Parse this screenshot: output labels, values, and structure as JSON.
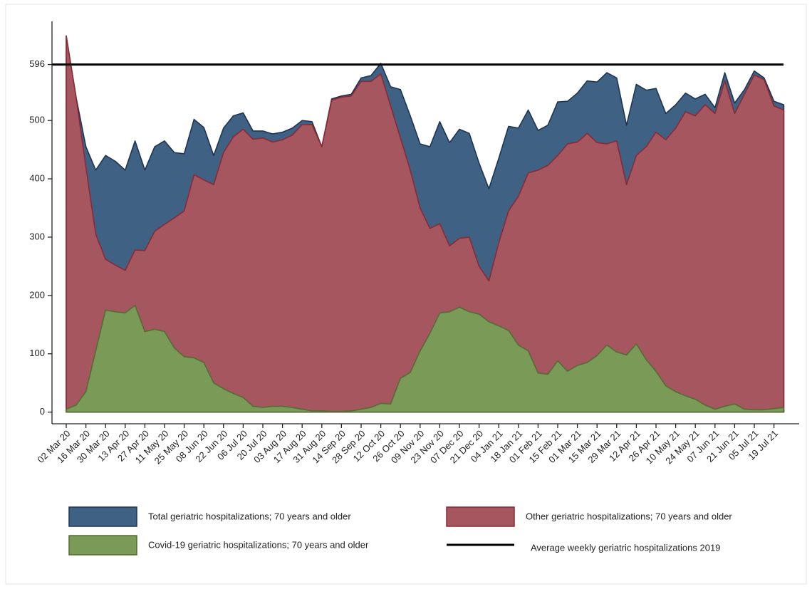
{
  "chart_data": {
    "type": "area",
    "categories": [
      "02 Mar 20",
      null,
      "16 Mar 20",
      null,
      "30 Mar 20",
      null,
      "13 Apr 20",
      null,
      "27 Apr 20",
      null,
      "11 May 20",
      null,
      "25 May 20",
      null,
      "08 Jun 20",
      null,
      "22 Jun 20",
      null,
      "06 Jul 20",
      null,
      "20 Jul 20",
      null,
      "03 Aug 20",
      null,
      "17 Aug 20",
      null,
      "31 Aug 20",
      null,
      "14 Sep 20",
      null,
      "28 Sep 20",
      null,
      "12 Oct 20",
      null,
      "26 Oct 20",
      null,
      "09 Nov 20",
      null,
      "23 Nov 20",
      null,
      "07 Dec 20",
      null,
      "21 Dec 20",
      null,
      "04 Jan 21",
      null,
      "18 Jan 21",
      null,
      "01 Feb 21",
      null,
      "15 Feb 21",
      null,
      "01 Mar 21",
      null,
      "15 Mar 21",
      null,
      "29 Mar 21",
      null,
      "12 Apr 21",
      null,
      "26 Apr 21",
      null,
      "10 May 21",
      null,
      "24 May 21",
      null,
      "07 Jun 21",
      null,
      "21 Jun 21",
      null,
      "05 Jul 21",
      null,
      "19 Jul 21",
      null
    ],
    "series": [
      {
        "name": "Total geriatric hospitalizations; 70 years and older",
        "color": "#3f6183",
        "stroke": "#1e3552",
        "values": [
          645,
          540,
          455,
          415,
          440,
          430,
          415,
          465,
          415,
          455,
          465,
          445,
          443,
          502,
          488,
          440,
          487,
          508,
          513,
          482,
          482,
          477,
          480,
          487,
          500,
          498,
          455,
          537,
          542,
          545,
          573,
          577,
          598,
          558,
          553,
          508,
          460,
          455,
          498,
          462,
          485,
          478,
          427,
          383,
          435,
          490,
          487,
          518,
          483,
          492,
          532,
          533,
          547,
          568,
          566,
          582,
          573,
          492,
          562,
          552,
          555,
          512,
          527,
          547,
          537,
          545,
          522,
          582,
          530,
          553,
          585,
          573,
          533,
          527
        ]
      },
      {
        "name": "Other geriatric hospitalizations; 70 years and older",
        "color": "#a5565f",
        "stroke": "#8a2a36",
        "values": [
          645,
          540,
          420,
          305,
          262,
          252,
          243,
          278,
          277,
          310,
          322,
          333,
          345,
          407,
          398,
          390,
          445,
          472,
          485,
          468,
          470,
          463,
          467,
          475,
          493,
          493,
          455,
          535,
          540,
          542,
          567,
          567,
          580,
          525,
          470,
          415,
          350,
          315,
          323,
          285,
          298,
          300,
          250,
          225,
          290,
          345,
          370,
          410,
          415,
          423,
          440,
          460,
          463,
          478,
          462,
          460,
          465,
          390,
          440,
          455,
          480,
          467,
          487,
          515,
          508,
          527,
          512,
          568,
          512,
          545,
          578,
          570,
          525,
          518
        ]
      },
      {
        "name": "Covid-19 geriatric hospitalizations; 70 years and older",
        "color": "#7a9a58",
        "stroke": "#556b35",
        "values": [
          5,
          12,
          35,
          105,
          175,
          172,
          170,
          183,
          138,
          142,
          138,
          110,
          95,
          93,
          85,
          50,
          40,
          32,
          25,
          10,
          8,
          10,
          10,
          8,
          5,
          2,
          2,
          1,
          1,
          2,
          5,
          8,
          15,
          14,
          58,
          68,
          105,
          135,
          170,
          172,
          180,
          172,
          168,
          155,
          148,
          140,
          115,
          105,
          67,
          65,
          88,
          70,
          80,
          85,
          97,
          115,
          103,
          98,
          117,
          90,
          70,
          45,
          35,
          28,
          22,
          12,
          5,
          10,
          14,
          5,
          4,
          4,
          6,
          8
        ]
      }
    ],
    "reference_line": {
      "name": "Average weekly geriatric hospitalizations 2019",
      "value": 596,
      "color": "#000000"
    },
    "ylim": [
      -20,
      670
    ],
    "yticks": [
      0,
      100,
      200,
      300,
      400,
      500,
      596
    ]
  }
}
